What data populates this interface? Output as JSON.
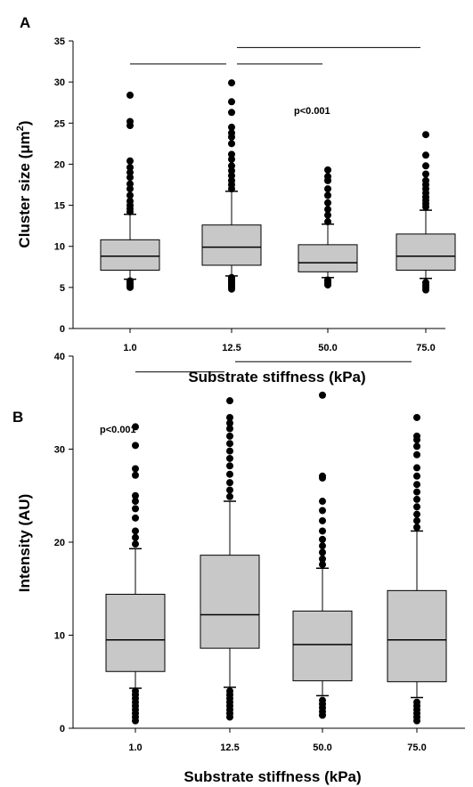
{
  "chart_data": [
    {
      "type": "box",
      "panel_label": "A",
      "xlabel": "Substrate stiffness (kPa)",
      "ylabel_main": "Cluster size (",
      "ylabel_unit": "μm",
      "ylabel_sup": "2",
      "ylabel_close": ")",
      "ylim": [
        0,
        35
      ],
      "yticks": [
        0,
        5,
        10,
        15,
        20,
        25,
        30,
        35
      ],
      "categories": [
        "1.0",
        "12.5",
        "50.0",
        "75.0"
      ],
      "box_color": "#c8c8c8",
      "pvalue": "p<0.001",
      "comparison_bars": [
        {
          "from": "1.0",
          "to": "12.5",
          "y": 32.2
        },
        {
          "from": "12.5",
          "to": "50.0",
          "y": 32.2
        },
        {
          "from": "12.5",
          "to": "75.0",
          "y": 34.2
        }
      ],
      "boxes": [
        {
          "category": "1.0",
          "whisker_low": 6.0,
          "q1": 7.1,
          "median": 8.8,
          "q3": 10.8,
          "whisker_high": 13.9,
          "outliers": [
            5.0,
            5.2,
            5.4,
            5.6,
            5.8,
            14.2,
            14.6,
            15.0,
            15.5,
            16.2,
            17.0,
            17.6,
            18.4,
            19.0,
            19.6,
            20.4,
            24.7,
            25.2,
            28.4
          ]
        },
        {
          "category": "12.5",
          "whisker_low": 6.4,
          "q1": 7.7,
          "median": 9.9,
          "q3": 12.6,
          "whisker_high": 16.7,
          "outliers": [
            4.8,
            5.0,
            5.2,
            5.4,
            5.6,
            5.8,
            6.0,
            6.2,
            17.0,
            17.5,
            18.0,
            18.6,
            19.2,
            19.8,
            20.6,
            21.2,
            22.5,
            23.3,
            23.8,
            24.5,
            26.3,
            27.6,
            29.9
          ]
        },
        {
          "category": "50.0",
          "whisker_low": 6.2,
          "q1": 6.9,
          "median": 8.0,
          "q3": 10.2,
          "whisker_high": 12.7,
          "outliers": [
            5.3,
            5.5,
            5.7,
            5.9,
            13.0,
            13.8,
            14.5,
            15.3,
            16.2,
            17.0,
            18.0,
            18.5,
            19.3
          ]
        },
        {
          "category": "75.0",
          "whisker_low": 6.1,
          "q1": 7.1,
          "median": 8.8,
          "q3": 11.5,
          "whisker_high": 14.4,
          "outliers": [
            4.7,
            5.0,
            5.3,
            5.6,
            14.8,
            15.2,
            15.6,
            16.0,
            16.5,
            17.0,
            17.5,
            18.0,
            18.8,
            19.8,
            21.1,
            23.6
          ]
        }
      ]
    },
    {
      "type": "box",
      "panel_label": "B",
      "xlabel": "Substrate stiffness (kPa)",
      "ylabel": "Intensity (AU)",
      "ylim": [
        0,
        40
      ],
      "yticks": [
        0,
        10,
        20,
        30,
        40
      ],
      "categories": [
        "1.0",
        "12.5",
        "50.0",
        "75.0"
      ],
      "box_color": "#c8c8c8",
      "pvalue": "p<0.001",
      "comparison_bars": [
        {
          "from": "1.0",
          "to": "12.5",
          "y": 38.3
        },
        {
          "from": "12.5",
          "to": "75.0",
          "y": 39.4
        }
      ],
      "boxes": [
        {
          "category": "1.0",
          "whisker_low": 4.3,
          "q1": 6.1,
          "median": 9.5,
          "q3": 14.4,
          "whisker_high": 19.3,
          "outliers": [
            0.8,
            1.2,
            1.6,
            2.0,
            2.4,
            2.8,
            3.2,
            3.6,
            4.0,
            19.8,
            20.5,
            21.2,
            22.6,
            23.6,
            24.4,
            25.0,
            27.2,
            27.9,
            30.4,
            32.4
          ]
        },
        {
          "category": "12.5",
          "whisker_low": 4.4,
          "q1": 8.6,
          "median": 12.2,
          "q3": 18.6,
          "whisker_high": 24.4,
          "outliers": [
            1.2,
            1.6,
            2.0,
            2.4,
            2.8,
            3.2,
            3.6,
            4.0,
            24.9,
            25.6,
            26.4,
            27.3,
            28.2,
            29.0,
            29.8,
            30.6,
            31.4,
            32.2,
            32.8,
            33.4,
            35.2
          ]
        },
        {
          "category": "50.0",
          "whisker_low": 3.5,
          "q1": 5.1,
          "median": 9.0,
          "q3": 12.6,
          "whisker_high": 17.2,
          "outliers": [
            1.4,
            1.8,
            2.2,
            2.6,
            3.0,
            17.6,
            18.2,
            18.9,
            19.6,
            20.3,
            21.2,
            22.3,
            23.4,
            24.4,
            26.9,
            27.1,
            35.8
          ]
        },
        {
          "category": "75.0",
          "whisker_low": 3.3,
          "q1": 5.0,
          "median": 9.5,
          "q3": 14.8,
          "whisker_high": 21.2,
          "outliers": [
            0.8,
            1.2,
            1.6,
            2.0,
            2.4,
            2.8,
            21.6,
            22.3,
            23.0,
            23.8,
            24.6,
            25.4,
            26.2,
            27.1,
            28.0,
            29.4,
            30.3,
            31.0,
            31.4,
            33.4
          ]
        }
      ]
    }
  ]
}
